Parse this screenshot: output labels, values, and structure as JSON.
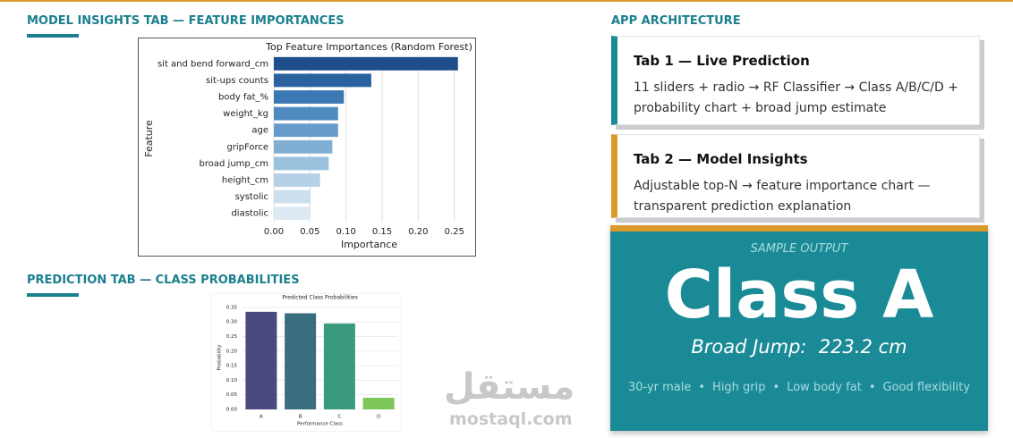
{
  "left": {
    "top_heading": "MODEL INSIGHTS TAB — FEATURE IMPORTANCES",
    "bottom_heading": "PREDICTION TAB — CLASS PROBABILITIES"
  },
  "chart_data": [
    {
      "type": "bar",
      "orientation": "horizontal",
      "title": "Top Feature Importances (Random Forest)",
      "xlabel": "Importance",
      "ylabel": "Feature",
      "categories": [
        "sit and bend forward_cm",
        "sit-ups counts",
        "body fat_%",
        "weight_kg",
        "age",
        "gripForce",
        "broad jump_cm",
        "height_cm",
        "systolic",
        "diastolic"
      ],
      "values": [
        0.255,
        0.135,
        0.097,
        0.089,
        0.089,
        0.081,
        0.076,
        0.064,
        0.051,
        0.05
      ],
      "colors": [
        "#1f4e8c",
        "#2a62a0",
        "#3b78b3",
        "#4f8ac0",
        "#679cca",
        "#80afd3",
        "#9ac2dd",
        "#b4d1e6",
        "#cbdfee",
        "#dde9f3"
      ],
      "xlim": [
        0,
        0.264
      ],
      "xticks": [
        {
          "value": 0,
          "label": "0.00"
        },
        {
          "value": 0.05,
          "label": "0.05"
        },
        {
          "value": 0.1,
          "label": "0.10"
        },
        {
          "value": 0.15,
          "label": "0.15"
        },
        {
          "value": 0.2,
          "label": "0.20"
        },
        {
          "value": 0.25,
          "label": "0.25"
        }
      ],
      "grid": true
    },
    {
      "type": "bar",
      "orientation": "vertical",
      "title": "Predicted Class Probabilities",
      "xlabel": "Performance Class",
      "ylabel": "Probability",
      "categories": [
        "A",
        "B",
        "C",
        "D"
      ],
      "values": [
        0.335,
        0.33,
        0.295,
        0.04
      ],
      "colors": [
        "#4a4a7e",
        "#3a6e7e",
        "#3a9a7e",
        "#7ec85a"
      ],
      "ylim": [
        0,
        0.356
      ],
      "yticks": [
        {
          "value": 0,
          "label": "0.00"
        },
        {
          "value": 0.05,
          "label": "0.05"
        },
        {
          "value": 0.1,
          "label": "0.10"
        },
        {
          "value": 0.15,
          "label": "0.15"
        },
        {
          "value": 0.2,
          "label": "0.20"
        },
        {
          "value": 0.25,
          "label": "0.25"
        },
        {
          "value": 0.3,
          "label": "0.30"
        },
        {
          "value": 0.35,
          "label": "0.35"
        }
      ],
      "grid": true
    }
  ],
  "architecture": {
    "heading": "APP ARCHITECTURE",
    "cards": [
      {
        "title": "Tab 1 — Live Prediction",
        "text": "11 sliders + radio → RF Classifier → Class A/B/C/D + probability chart + broad jump estimate"
      },
      {
        "title": "Tab 2 — Model Insights",
        "text": "Adjustable top-N → feature importance chart — transparent prediction explanation"
      }
    ]
  },
  "sample_output": {
    "label": "SAMPLE OUTPUT",
    "class": "Class A",
    "broad_jump": "Broad Jump:  223.2 cm",
    "traits": [
      "30-yr male",
      "High grip",
      "Low body fat",
      "Good flexibility"
    ]
  },
  "watermark": {
    "arabic": "مستقل",
    "latin": "mostaql.com"
  }
}
